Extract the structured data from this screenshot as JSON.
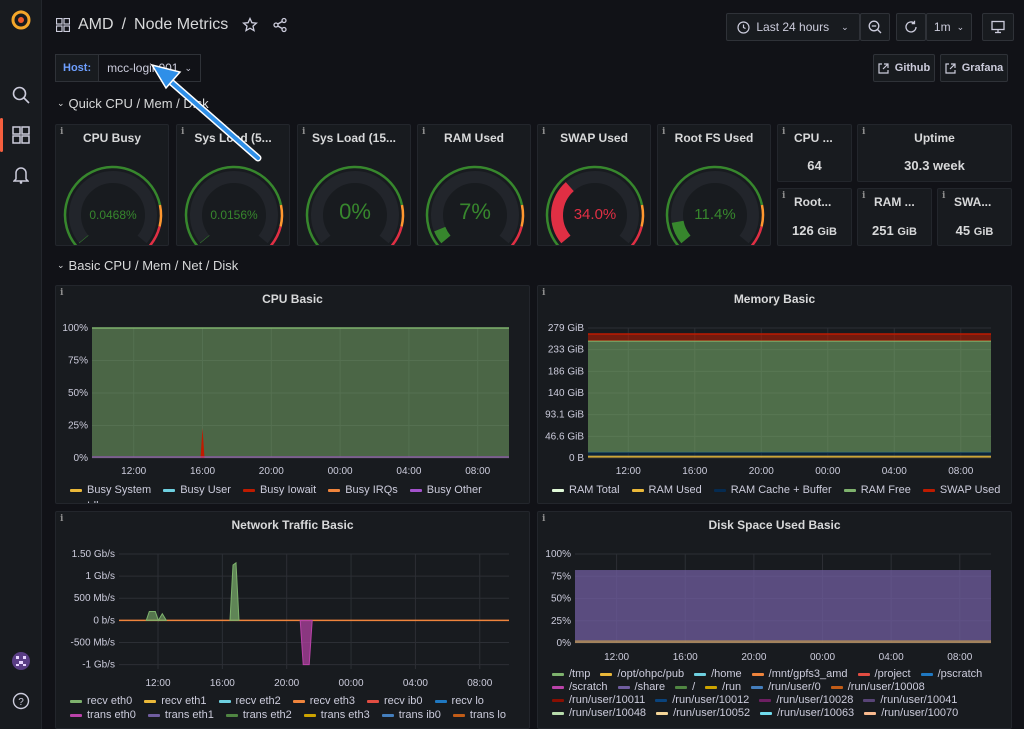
{
  "dashboard": {
    "folder": "AMD",
    "separator": "/",
    "title": "Node Metrics"
  },
  "toolbar": {
    "time_range": "Last 24 hours",
    "refresh_interval": "1m"
  },
  "variables": {
    "host_label": "Host:",
    "host_value": "mcc-login001"
  },
  "links": {
    "github": "Github",
    "grafana": "Grafana"
  },
  "sections": {
    "quick": "Quick CPU / Mem / Disk",
    "basic": "Basic CPU / Mem / Net / Disk"
  },
  "gauges": [
    {
      "title": "CPU Busy",
      "value": "0.0468%",
      "fraction": 0.000468,
      "color": "#37872d"
    },
    {
      "title": "Sys Load (5...",
      "value": "0.0156%",
      "fraction": 0.000156,
      "color": "#37872d"
    },
    {
      "title": "Sys Load (15...",
      "value": "0%",
      "fraction": 0.0,
      "color": "#37872d"
    },
    {
      "title": "RAM Used",
      "value": "7%",
      "fraction": 0.07,
      "color": "#37872d"
    },
    {
      "title": "SWAP Used",
      "value": "34.0%",
      "fraction": 0.34,
      "color": "#e02f44"
    },
    {
      "title": "Root FS Used",
      "value": "11.4%",
      "fraction": 0.114,
      "color": "#37872d"
    }
  ],
  "stats": [
    {
      "title": "CPU ...",
      "value": "64"
    },
    {
      "title": "Uptime",
      "value": "30.3 week"
    },
    {
      "title": "Root...",
      "value": "126",
      "unit": "GiB"
    },
    {
      "title": "RAM ...",
      "value": "251",
      "unit": "GiB"
    },
    {
      "title": "SWA...",
      "value": "45",
      "unit": "GiB"
    }
  ],
  "panels": {
    "cpu": "CPU Basic",
    "memory": "Memory Basic",
    "network": "Network Traffic Basic",
    "disk": "Disk Space Used Basic"
  },
  "x_ticks": [
    "12:00",
    "16:00",
    "20:00",
    "00:00",
    "04:00",
    "08:00"
  ],
  "chart_data": [
    {
      "type": "area",
      "title": "CPU Basic",
      "y_ticks": [
        "100%",
        "75%",
        "50%",
        "25%",
        "0%"
      ],
      "ylim": [
        0,
        100
      ],
      "series": [
        {
          "name": "Busy System",
          "color": "#eab839"
        },
        {
          "name": "Busy User",
          "color": "#6ed0e0"
        },
        {
          "name": "Busy Iowait",
          "color": "#bf1b00"
        },
        {
          "name": "Busy IRQs",
          "color": "#ef843c"
        },
        {
          "name": "Busy Other",
          "color": "#a352cc"
        },
        {
          "name": "Idle",
          "color": "#7eb26d",
          "values": [
            100,
            100,
            100,
            100,
            100,
            100
          ]
        }
      ]
    },
    {
      "type": "area",
      "title": "Memory Basic",
      "y_ticks": [
        "279 GiB",
        "233 GiB",
        "186 GiB",
        "140 GiB",
        "93.1 GiB",
        "46.6 GiB",
        "0 B"
      ],
      "ylim": [
        0,
        279
      ],
      "series": [
        {
          "name": "RAM Total",
          "color": "#e0f9d7"
        },
        {
          "name": "RAM Used",
          "color": "#eab839",
          "values": [
            4,
            4,
            4,
            4,
            4,
            4
          ]
        },
        {
          "name": "RAM Cache + Buffer",
          "color": "#052b51",
          "values": [
            8,
            8,
            8,
            8,
            8,
            8
          ]
        },
        {
          "name": "RAM Free",
          "color": "#7eb26d",
          "values": [
            239,
            239,
            239,
            239,
            239,
            239
          ]
        },
        {
          "name": "SWAP Used",
          "color": "#bf1b00",
          "values": [
            15,
            15,
            15,
            15,
            15,
            15
          ]
        }
      ]
    },
    {
      "type": "line",
      "title": "Network Traffic Basic",
      "y_ticks": [
        "1.50 Gb/s",
        "1 Gb/s",
        "500 Mb/s",
        "0 b/s",
        "-500 Mb/s",
        "-1 Gb/s"
      ],
      "ylim": [
        -1.1,
        1.5
      ],
      "series": [
        {
          "name": "recv eth0",
          "color": "#7eb26d"
        },
        {
          "name": "recv eth1",
          "color": "#eab839"
        },
        {
          "name": "recv eth2",
          "color": "#6ed0e0"
        },
        {
          "name": "recv eth3",
          "color": "#ef843c"
        },
        {
          "name": "recv ib0",
          "color": "#e24d42"
        },
        {
          "name": "recv lo",
          "color": "#1f78c1"
        },
        {
          "name": "trans eth0",
          "color": "#ba43a9"
        },
        {
          "name": "trans eth1",
          "color": "#705da0"
        },
        {
          "name": "trans eth2",
          "color": "#508642"
        },
        {
          "name": "trans eth3",
          "color": "#cca300"
        },
        {
          "name": "trans ib0",
          "color": "#447ebc"
        },
        {
          "name": "trans lo",
          "color": "#c15c17"
        }
      ]
    },
    {
      "type": "area",
      "title": "Disk Space Used Basic",
      "y_ticks": [
        "100%",
        "75%",
        "50%",
        "25%",
        "0%"
      ],
      "ylim": [
        0,
        100
      ],
      "series": [
        {
          "name": "/tmp",
          "color": "#7eb26d"
        },
        {
          "name": "/opt/ohpc/pub",
          "color": "#eab839"
        },
        {
          "name": "/home",
          "color": "#6ed0e0"
        },
        {
          "name": "/mnt/gpfs3_amd",
          "color": "#ef843c"
        },
        {
          "name": "/project",
          "color": "#e24d42"
        },
        {
          "name": "/pscratch",
          "color": "#1f78c1"
        },
        {
          "name": "/scratch",
          "color": "#ba43a9"
        },
        {
          "name": "/share",
          "color": "#705da0",
          "values": [
            82,
            82,
            82,
            82,
            82,
            82
          ]
        },
        {
          "name": "/",
          "color": "#508642"
        },
        {
          "name": "/run",
          "color": "#cca300"
        },
        {
          "name": "/run/user/0",
          "color": "#447ebc"
        },
        {
          "name": "/run/user/10008",
          "color": "#c15c17"
        },
        {
          "name": "/run/user/10011",
          "color": "#890f02"
        },
        {
          "name": "/run/user/10012",
          "color": "#0a437c"
        },
        {
          "name": "/run/user/10028",
          "color": "#6d1f62"
        },
        {
          "name": "/run/user/10041",
          "color": "#584477"
        },
        {
          "name": "/run/user/10048",
          "color": "#b7dbab"
        },
        {
          "name": "/run/user/10052",
          "color": "#f4d598"
        },
        {
          "name": "/run/user/10063",
          "color": "#70dbed"
        },
        {
          "name": "/run/user/10070",
          "color": "#f9ba8f"
        }
      ]
    }
  ]
}
